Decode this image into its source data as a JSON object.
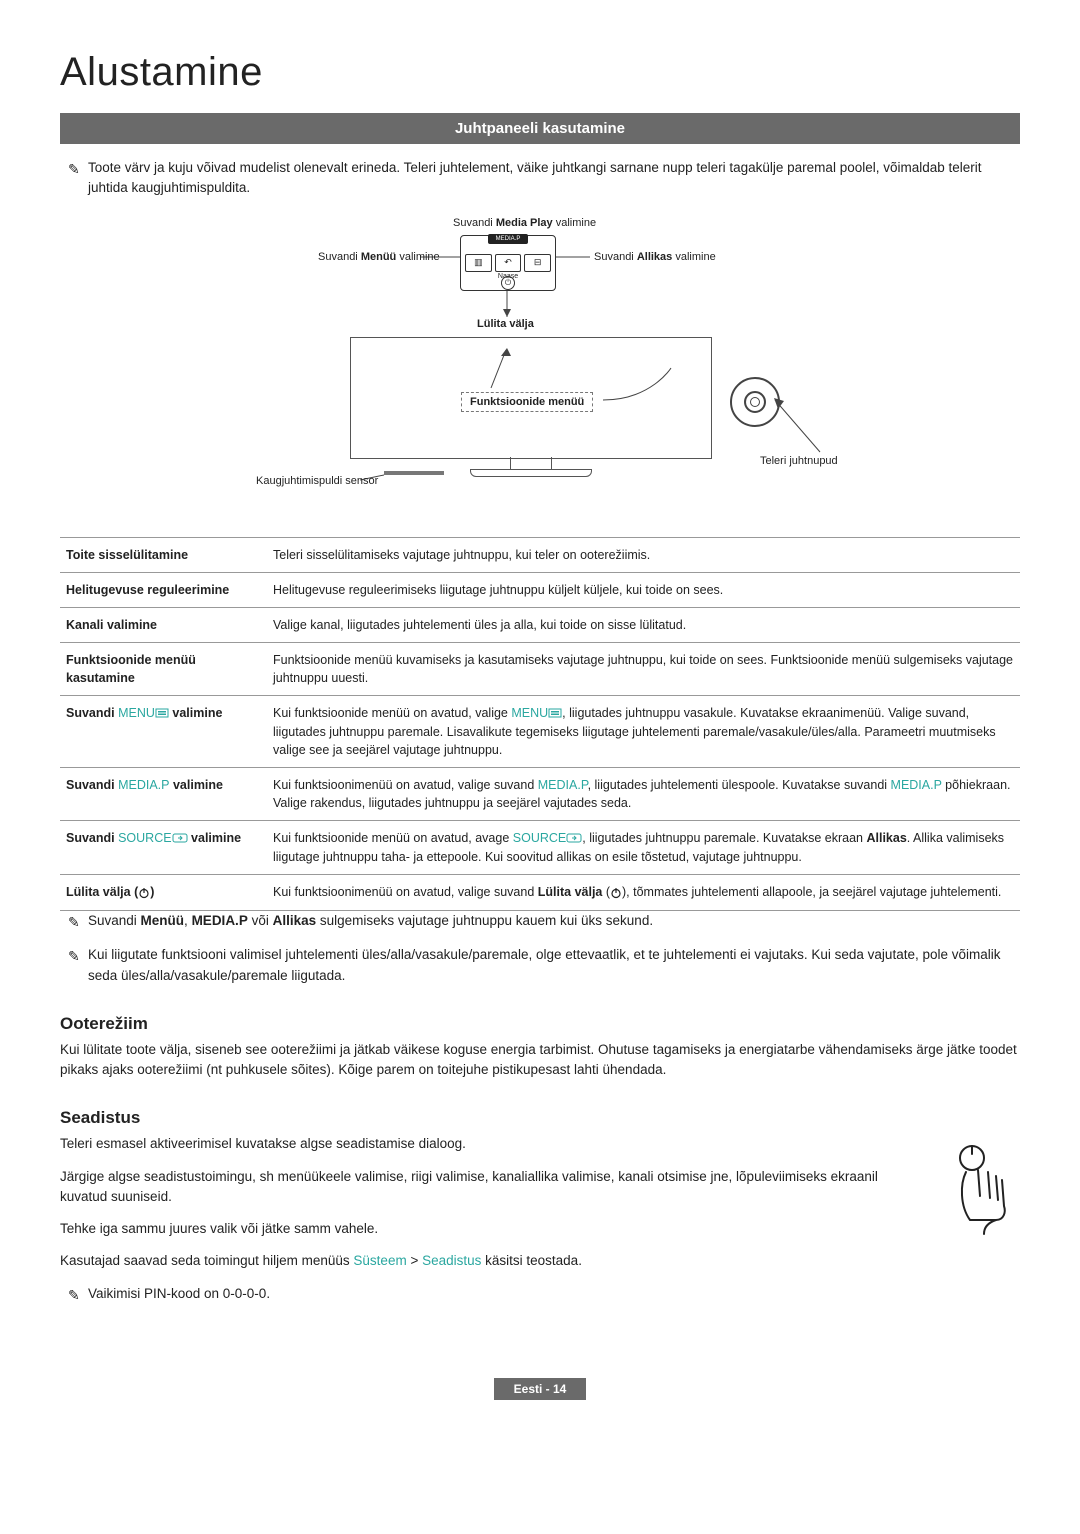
{
  "page": {
    "title": "Alustamine",
    "section_header": "Juhtpaneeli kasutamine",
    "intro_note": "Toote värv ja kuju võivad mudelist olenevalt erineda. Teleri juhtelement, väike juhtkangi sarnane nupp teleri tagakülje paremal poolel, võimaldab telerit juhtida kaugjuhtimispuldita."
  },
  "diagram": {
    "media_play": "Suvandi Media Play valimine",
    "menu": "Suvandi Menüü valimine",
    "allikas": "Suvandi Allikas valimine",
    "lulita": "Lülita välja",
    "funkmenu": "Funktsioonide menüü",
    "sensor": "Kaugjuhtimispuldi sensor",
    "juhtnupud": "Teleri juhtnupud",
    "pad_top": "MEDIA.P",
    "pad_mid_left": "▥",
    "pad_mid_center": "↶",
    "pad_mid_right": "⊟",
    "pad_naase": "Naase"
  },
  "table": [
    {
      "label": "Toite sisselülitamine",
      "desc": "Teleri sisselülitamiseks vajutage juhtnuppu, kui teler on ooterežiimis."
    },
    {
      "label": "Helitugevuse reguleerimine",
      "desc": "Helitugevuse reguleerimiseks liigutage juhtnuppu küljelt küljele, kui toide on sees."
    },
    {
      "label": "Kanali valimine",
      "desc": "Valige kanal, liigutades juhtelementi üles ja alla, kui toide on sisse lülitatud."
    },
    {
      "label": "Funktsioonide menüü kasutamine",
      "desc": "Funktsioonide menüü kuvamiseks ja kasutamiseks vajutage juhtnuppu, kui toide on sees. Funktsioonide menüü sulgemiseks vajutage juhtnuppu uuesti."
    },
    {
      "label_pre": "Suvandi ",
      "teal": "MENU",
      "label_post": " valimine",
      "desc_html": "Kui funktsioonide menüü on avatud, valige <span class='teal'>MENU</span><span class='menu-icon'><svg viewBox='0 0 14 10'><rect x='1' y='1' width='12' height='8' fill='none' stroke='#2aa7a0'/><line x1='3' y1='3.5' x2='11' y2='3.5' stroke='#2aa7a0'/><line x1='3' y1='5' x2='11' y2='5' stroke='#2aa7a0'/><line x1='3' y1='6.5' x2='11' y2='6.5' stroke='#2aa7a0'/></svg></span>, liigutades juhtnuppu vasakule. Kuvatakse ekraanimenüü. Valige suvand, liigutades juhtnuppu paremale. Lisavalikute tegemiseks liigutage juhtelementi paremale/vasakule/üles/alla. Parameetri muutmiseks valige see ja seejärel vajutage juhtnuppu."
    },
    {
      "label_pre": "Suvandi ",
      "teal": "MEDIA.P",
      "label_post": " valimine",
      "desc_html": "Kui funktsioonimenüü on avatud, valige suvand <span class='teal'>MEDIA.P</span>, liigutades juhtelementi ülespoole. Kuvatakse suvandi <span class='teal'>MEDIA.P</span> põhiekraan. Valige rakendus, liigutades juhtnuppu ja seejärel vajutades seda."
    },
    {
      "label_pre": "Suvandi ",
      "teal": "SOURCE",
      "label_post": " valimine",
      "src": true,
      "desc_html": "Kui funktsioonide menüü on avatud, avage <span class='teal'>SOURCE</span><span class='src-icon'><svg viewBox='0 0 16 10'><rect x='1' y='1' width='14' height='8' rx='2' fill='none' stroke='#2aa7a0'/><path d='M6 5 l4 0 M8 3 l2 2 l-2 2' fill='none' stroke='#2aa7a0'/></svg></span>, liigutades juhtnuppu paremale. Kuvatakse ekraan <b>Allikas</b>. Allika valimiseks liigutage juhtnuppu taha- ja ettepoole. Kui soovitud allikas on esile tõstetud, vajutage juhtnuppu."
    },
    {
      "label_html": "Lülita välja (<span class='pwr-icon'><svg viewBox='0 0 12 12'><circle cx='6' cy='6.5' r='4' fill='none' stroke='#222' stroke-width='1.2'/><line x1='6' y1='1' x2='6' y2='6' stroke='#222' stroke-width='1.2'/></svg></span>)",
      "desc_html": "Kui funktsioonimenüü on avatud, valige suvand <b>Lülita välja</b> (<span class='pwr-icon'><svg viewBox='0 0 12 12'><circle cx='6' cy='6.5' r='4' fill='none' stroke='#222' stroke-width='1.2'/><line x1='6' y1='1' x2='6' y2='6' stroke='#222' stroke-width='1.2'/></svg></span>), tõmmates juhtelementi allapoole, ja seejärel vajutage juhtelementi."
    }
  ],
  "post_notes": [
    "Suvandi <b>Menüü</b>, <b>MEDIA.P</b> või <b>Allikas</b> sulgemiseks vajutage juhtnuppu kauem kui üks sekund.",
    "Kui liigutate funktsiooni valimisel juhtelementi üles/alla/vasakule/paremale, olge ettevaatlik, et te juhtelementi ei vajutaks. Kui seda vajutate, pole võimalik seda üles/alla/vasakule/paremale liigutada."
  ],
  "ooterezim": {
    "heading": "Ooterežiim",
    "body": "Kui lülitate toote välja, siseneb see ooterežiimi ja jätkab väikese koguse energia tarbimist. Ohutuse tagamiseks ja energiatarbe vähendamiseks ärge jätke toodet pikaks ajaks ooterežiimi (nt puhkusele sõites). Kõige parem on toitejuhe pistikupesast lahti ühendada."
  },
  "seadistus": {
    "heading": "Seadistus",
    "p1": "Teleri esmasel aktiveerimisel kuvatakse algse seadistamise dialoog.",
    "p2": "Järgige algse seadistustoimingu, sh menüükeele valimise, riigi valimise, kanaliallika valimise, kanali otsimise jne, lõpuleviimiseks ekraanil kuvatud suuniseid.",
    "p3": "Tehke iga sammu juures valik või jätke samm vahele.",
    "p4_pre": "Kasutajad saavad seda toimingut hiljem menüüs ",
    "p4_teal1": "Süsteem",
    "p4_mid": " > ",
    "p4_teal2": "Seadistus",
    "p4_post": " käsitsi teostada.",
    "note": "Vaikimisi PIN-kood on 0-0-0-0."
  },
  "footer": "Eesti - 14",
  "colors": {
    "teal": "#2aa7a0",
    "bar": "#6a6a6a"
  }
}
